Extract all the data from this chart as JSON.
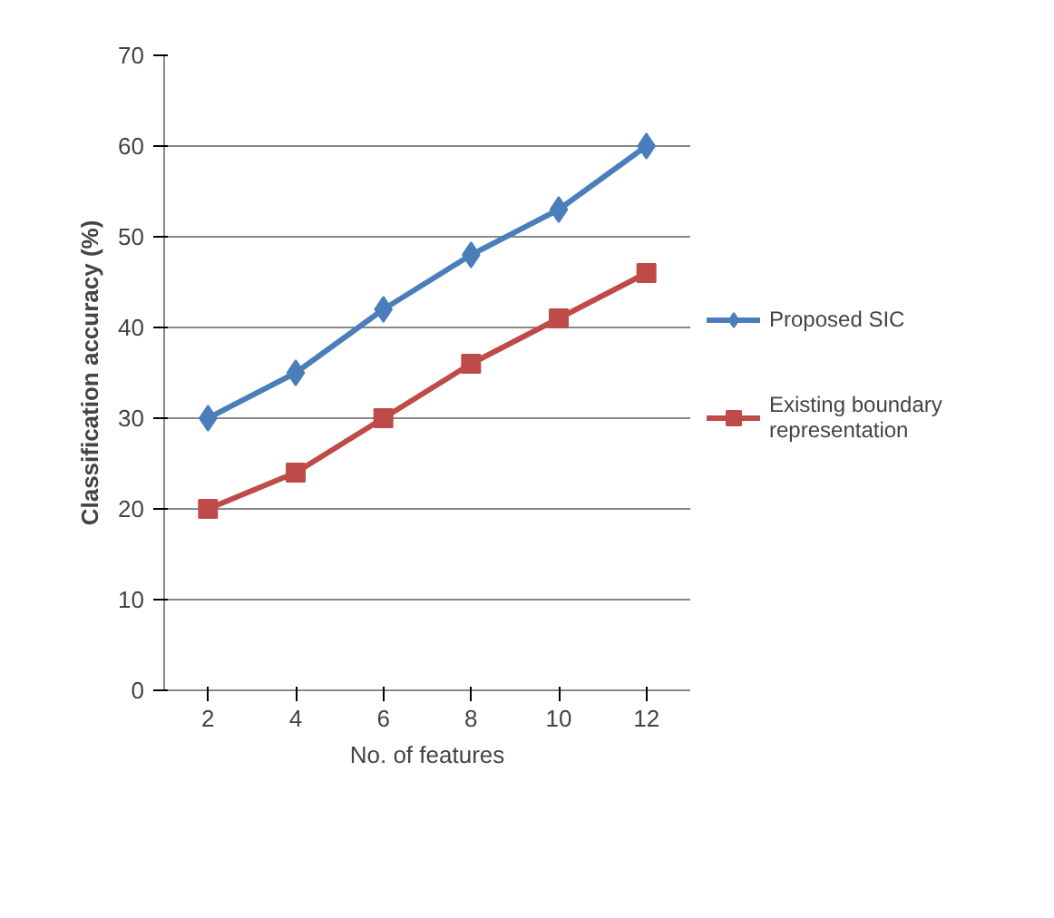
{
  "chart_data": {
    "type": "line",
    "xlabel": "No. of features",
    "ylabel": "Classification accuracy (%)",
    "categories": [
      "2",
      "4",
      "6",
      "8",
      "10",
      "12"
    ],
    "series": [
      {
        "name": "Proposed SIC",
        "color": "#4a7ebb",
        "marker": "diamond",
        "values": [
          30,
          35,
          42,
          48,
          53,
          60
        ]
      },
      {
        "name": "Existing boundary representation",
        "color": "#be4b48",
        "marker": "square",
        "values": [
          20,
          24,
          30,
          36,
          41,
          46
        ]
      }
    ],
    "ylim": [
      0,
      70
    ],
    "yticks": [
      0,
      10,
      20,
      30,
      40,
      50,
      60,
      70
    ],
    "grid": "y",
    "legend": "right",
    "line_style": "solid"
  }
}
